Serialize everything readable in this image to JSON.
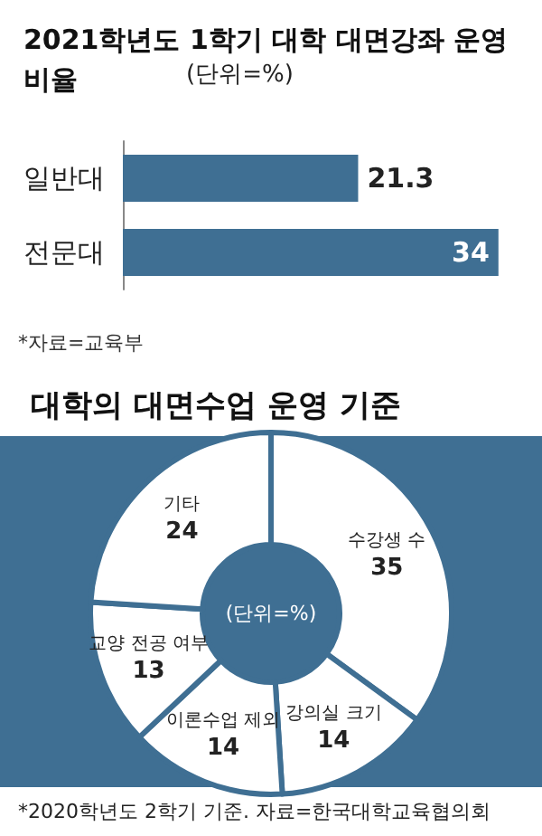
{
  "chart_data": [
    {
      "type": "bar",
      "orientation": "horizontal",
      "title": "2021학년도 1학기 대학 대면강좌 운영 비율",
      "subtitle": "(단위=%)",
      "categories": [
        "일반대",
        "전문대"
      ],
      "values": [
        21.3,
        34
      ],
      "color": "#3f6f93",
      "data_labels": true,
      "annotations": [
        "*자료=교육부"
      ]
    },
    {
      "type": "donut",
      "title": "대학의 대면수업 운영 기준",
      "categories": [
        "수강생 수",
        "강의실 크기",
        "이론수업 제외",
        "교양 전공 여부",
        "기타"
      ],
      "values": [
        35,
        14,
        14,
        13,
        24
      ],
      "colors": [
        "#ffffff",
        "#ffffff",
        "#ffffff",
        "#ffffff",
        "#ffffff"
      ],
      "data_labels": true,
      "annotations": [
        "(단위=%)",
        "*2020학년도 2학기 기준. 자료=한국대학교육협의회"
      ]
    }
  ]
}
